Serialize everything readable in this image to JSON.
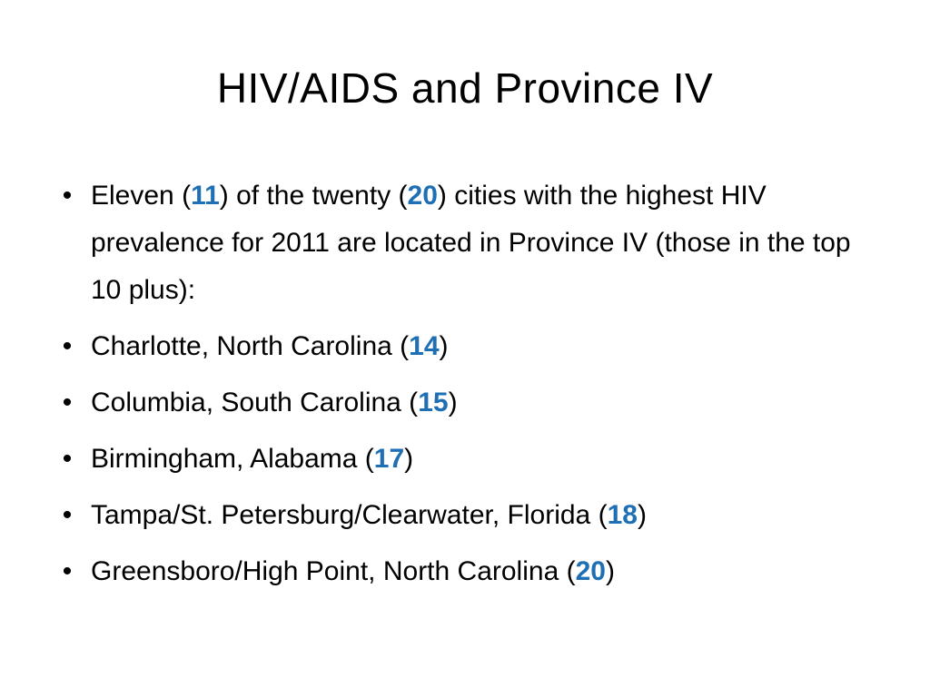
{
  "slide": {
    "title": "HIV/AIDS and Province IV",
    "bullet_glyph": "•",
    "accent_color": "#1f6fb5",
    "bullets": [
      {
        "before": "Eleven (",
        "num1": "11",
        "middle": ") of the twenty (",
        "num2": "20",
        "after": ") cities with the highest HIV prevalence for 2011 are located in Province IV (those in the top 10 plus):"
      },
      {
        "before": "Charlotte, North Carolina (",
        "num": "14",
        "after": ")"
      },
      {
        "before": "Columbia, South Carolina (",
        "num": "15",
        "after": ")"
      },
      {
        "before": "Birmingham, Alabama (",
        "num": "17",
        "after": ")"
      },
      {
        "before": "Tampa/St. Petersburg/Clearwater, Florida (",
        "num": "18",
        "after": ")"
      },
      {
        "before": "Greensboro/High Point, North Carolina (",
        "num": "20",
        "after": ")"
      }
    ]
  }
}
